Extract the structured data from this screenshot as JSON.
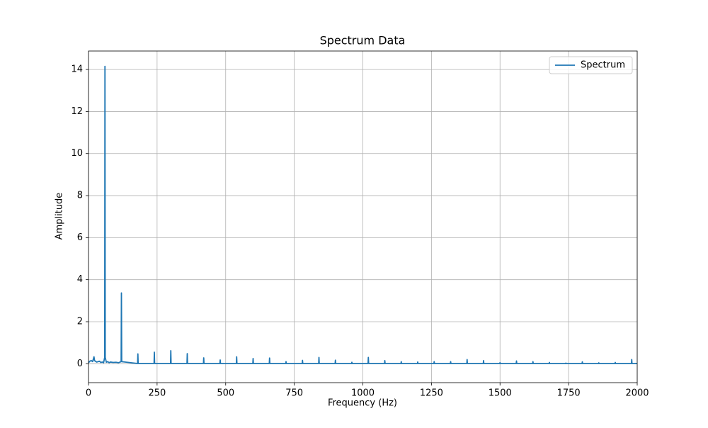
{
  "chart_data": {
    "type": "line",
    "title": "Spectrum Data",
    "xlabel": "Frequency (Hz)",
    "ylabel": "Amplitude",
    "x": [
      0,
      5,
      10,
      15,
      20,
      22,
      25,
      30,
      35,
      40,
      45,
      50,
      55,
      59,
      60,
      61,
      65,
      70,
      75,
      80,
      90,
      100,
      110,
      119,
      120,
      121,
      179,
      180,
      181,
      239,
      240,
      241,
      299,
      300,
      301,
      359,
      360,
      361,
      419,
      420,
      421,
      479,
      480,
      481,
      539,
      540,
      541,
      599,
      600,
      601,
      659,
      660,
      661,
      719,
      720,
      721,
      779,
      780,
      781,
      839,
      840,
      841,
      899,
      900,
      901,
      959,
      960,
      961,
      1019,
      1020,
      1021,
      1079,
      1080,
      1081,
      1139,
      1140,
      1141,
      1199,
      1200,
      1201,
      1259,
      1260,
      1261,
      1319,
      1320,
      1321,
      1379,
      1380,
      1381,
      1439,
      1440,
      1441,
      1499,
      1500,
      1501,
      1559,
      1560,
      1561,
      1619,
      1620,
      1621,
      1679,
      1680,
      1681,
      1739,
      1740,
      1741,
      1799,
      1800,
      1801,
      1859,
      1860,
      1861,
      1919,
      1920,
      1921,
      1979,
      1980,
      1981,
      2000
    ],
    "series": [
      {
        "name": "Spectrum",
        "color": "#1f77b4",
        "values": [
          0.05,
          0.12,
          0.15,
          0.1,
          0.33,
          0.15,
          0.12,
          0.08,
          0.1,
          0.12,
          0.06,
          0.08,
          0.05,
          0.3,
          14.15,
          0.3,
          0.07,
          0.1,
          0.05,
          0.08,
          0.06,
          0.07,
          0.05,
          0.1,
          3.37,
          0.1,
          0.01,
          0.47,
          0.01,
          0.01,
          0.55,
          0.01,
          0.01,
          0.62,
          0.01,
          0.01,
          0.48,
          0.01,
          0.01,
          0.28,
          0.01,
          0.01,
          0.18,
          0.01,
          0.01,
          0.33,
          0.01,
          0.01,
          0.25,
          0.01,
          0.01,
          0.27,
          0.01,
          0.01,
          0.1,
          0.01,
          0.01,
          0.16,
          0.01,
          0.01,
          0.3,
          0.01,
          0.01,
          0.17,
          0.01,
          0.01,
          0.07,
          0.01,
          0.01,
          0.3,
          0.01,
          0.01,
          0.15,
          0.01,
          0.01,
          0.1,
          0.01,
          0.01,
          0.08,
          0.01,
          0.01,
          0.1,
          0.01,
          0.01,
          0.1,
          0.01,
          0.01,
          0.2,
          0.01,
          0.01,
          0.15,
          0.01,
          0.01,
          0.05,
          0.01,
          0.01,
          0.13,
          0.01,
          0.01,
          0.1,
          0.01,
          0.01,
          0.06,
          0.01,
          0.01,
          0.03,
          0.01,
          0.01,
          0.09,
          0.01,
          0.01,
          0.04,
          0.01,
          0.01,
          0.06,
          0.01,
          0.01,
          0.2,
          0.01,
          0.01
        ]
      }
    ],
    "xlim": [
      0,
      2000
    ],
    "ylim": [
      -0.9,
      14.88
    ],
    "xticks": [
      0,
      250,
      500,
      750,
      1000,
      1250,
      1500,
      1750,
      2000
    ],
    "yticks": [
      0,
      2,
      4,
      6,
      8,
      10,
      12,
      14
    ],
    "grid": true,
    "legend": "upper right"
  }
}
